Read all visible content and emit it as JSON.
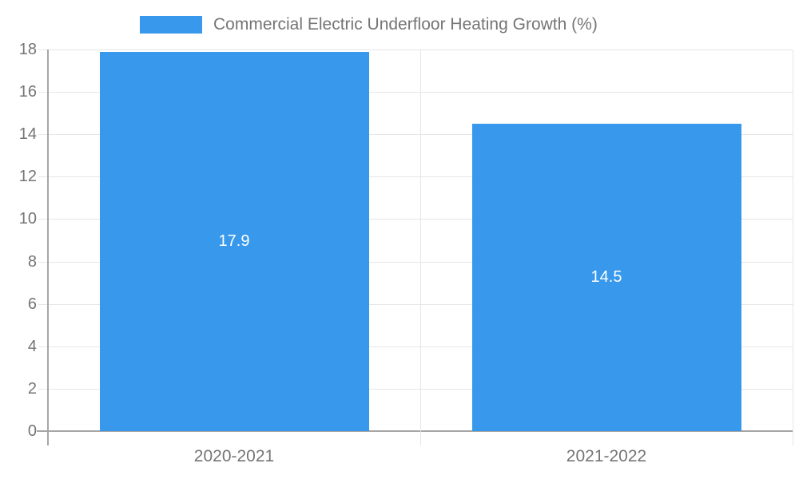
{
  "chart_data": {
    "type": "bar",
    "title": "Commercial Electric Underfloor Heating Growth (%)",
    "categories": [
      "2020-2021",
      "2021-2022"
    ],
    "values": [
      17.9,
      14.5
    ],
    "value_labels": [
      "17.9",
      "14.5"
    ],
    "xlabel": "",
    "ylabel": "",
    "ylim": [
      0,
      18
    ],
    "ytick_step": 2,
    "yticks": [
      0,
      2,
      4,
      6,
      8,
      10,
      12,
      14,
      16,
      18
    ],
    "grid": true,
    "legend_position": "top",
    "value_label_position": "center-inside"
  },
  "colors": {
    "bar": "#3899ec",
    "axis_text": "#757575",
    "gridline": "#e6e6e6",
    "baseline": "#a6a6a6",
    "value_label": "#ffffff",
    "background": "#ffffff"
  }
}
